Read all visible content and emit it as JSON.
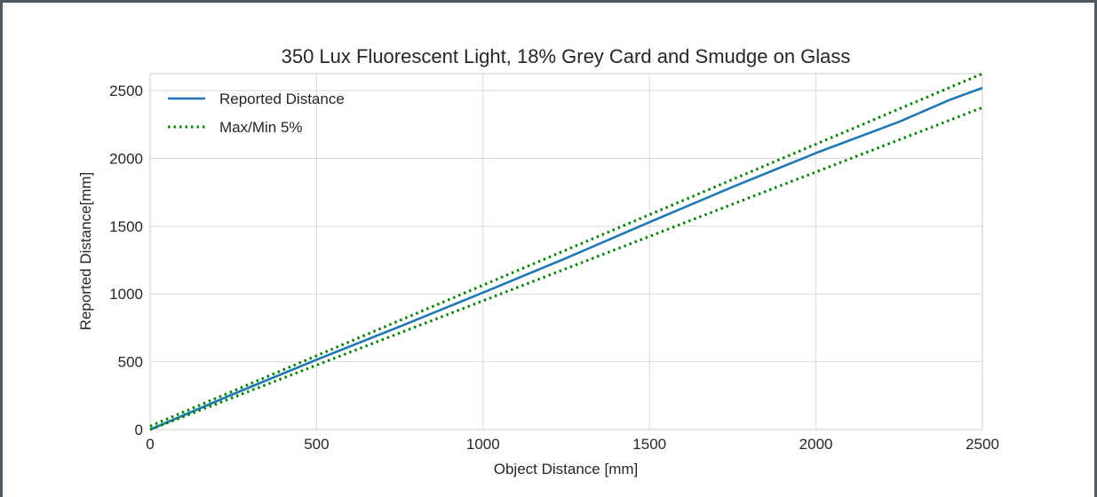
{
  "chart_data": {
    "type": "line",
    "title": "350 Lux Fluorescent Light, 18% Grey Card and Smudge on Glass",
    "xlabel": "Object Distance [mm]",
    "ylabel": "Reported Distance[mm]",
    "xlim": [
      0,
      2500
    ],
    "ylim": [
      0,
      2625
    ],
    "xticks": [
      0,
      500,
      1000,
      1500,
      2000,
      2500
    ],
    "yticks": [
      0,
      500,
      1000,
      1500,
      2000,
      2500
    ],
    "xtick_labels": [
      "0",
      "500",
      "1000",
      "1500",
      "2000",
      "2500"
    ],
    "ytick_labels": [
      "0",
      "500",
      "1000",
      "1500",
      "2000",
      "2500"
    ],
    "grid": true,
    "legend_position": "top-left",
    "series": [
      {
        "name": "Reported Distance",
        "style": "solid",
        "color": "#1f77b4",
        "x": [
          0,
          100,
          250,
          500,
          750,
          1000,
          1250,
          1500,
          1750,
          2000,
          2250,
          2400,
          2500
        ],
        "y": [
          0,
          105,
          262,
          515,
          760,
          1010,
          1265,
          1530,
          1790,
          2040,
          2270,
          2430,
          2520
        ]
      },
      {
        "name": "Max/Min 5%",
        "style": "dotted",
        "color": "#008000",
        "x": [
          0,
          2500
        ],
        "y": [
          25,
          2625
        ]
      },
      {
        "name": "",
        "style": "dotted",
        "color": "#008000",
        "x": [
          0,
          2500
        ],
        "y": [
          0,
          2375
        ]
      }
    ]
  }
}
